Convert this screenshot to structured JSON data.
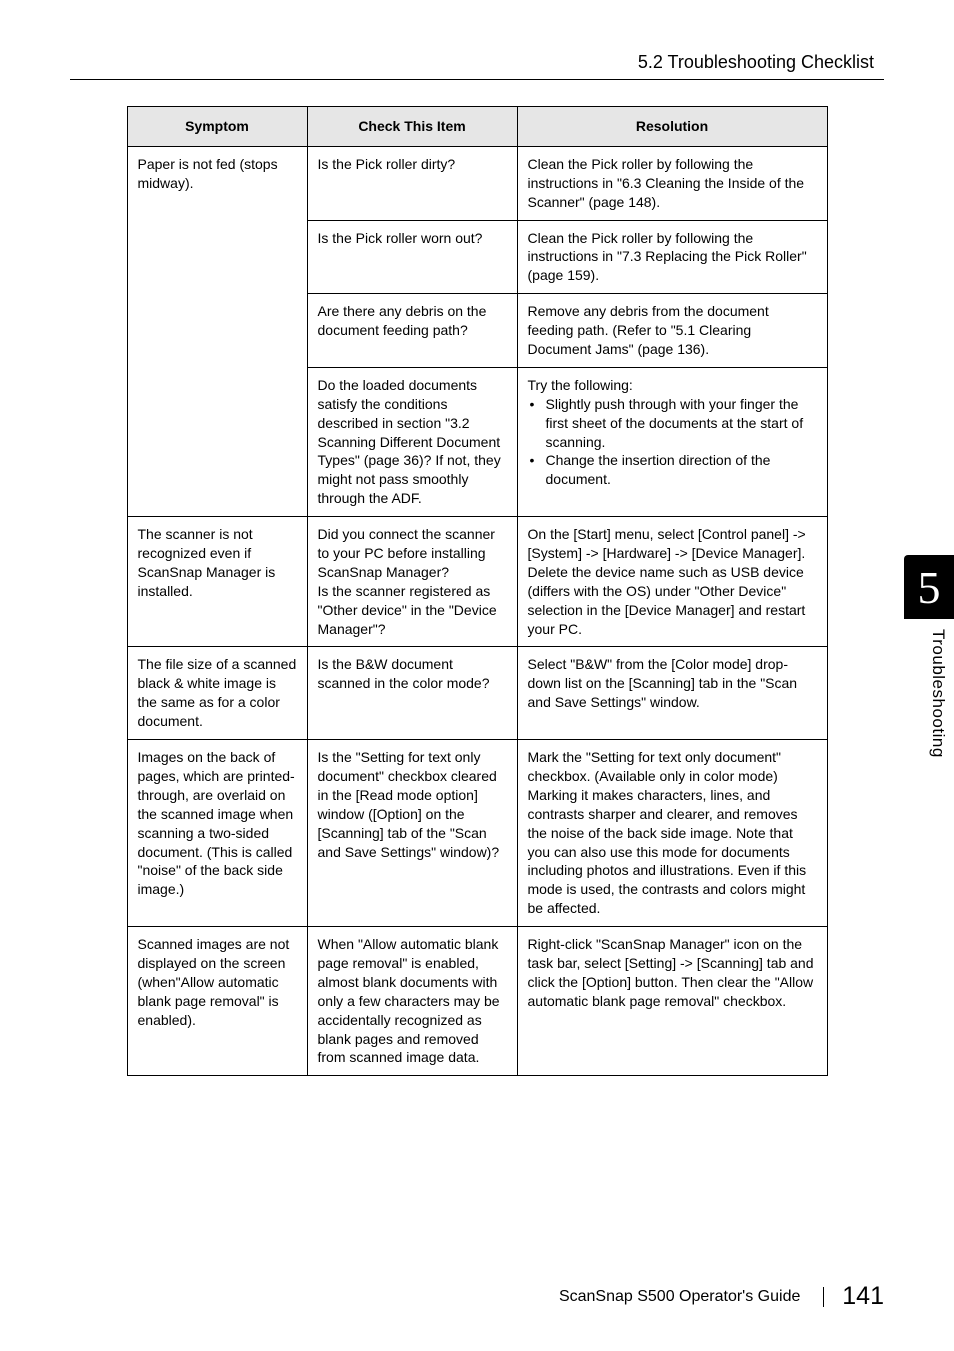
{
  "header": {
    "section": "5.2 Troubleshooting Checklist"
  },
  "side": {
    "chapter_num": "5",
    "chapter_label": "Troubleshooting"
  },
  "table": {
    "headers": {
      "symptom": "Symptom",
      "check": "Check This Item",
      "resolution": "Resolution"
    },
    "rows": {
      "r1": {
        "symptom": "Paper is not fed (stops midway).",
        "c1": {
          "check": "Is the Pick roller dirty?",
          "res": "Clean the Pick roller by following the instructions in \"6.3 Cleaning the Inside of the Scanner\" (page 148)."
        },
        "c2": {
          "check": "Is the Pick roller worn out?",
          "res": "Clean the Pick roller by following the instructions in \"7.3 Replacing the Pick Roller\" (page 159)."
        },
        "c3": {
          "check": "Are there any debris on the document feeding path?",
          "res": "Remove any debris from the docu­ment feeding path. (Refer to \"5.1 Clearing Document Jams\" (page 136)."
        },
        "c4": {
          "check": "Do the loaded documents satisfy the conditions described in section \"3.2 Scanning Different Docu­ment Types\" (page 36)? If not, they might not pass smoothly through the ADF.",
          "res_lead": "Try the following:",
          "res_b1": "Slightly push through with your finger the first sheet of the docu­ments at the start of scanning.",
          "res_b2": "Change the insertion direction of the document."
        }
      },
      "r2": {
        "symptom": "The scanner is not recognized even if ScanSnap Manager is installed.",
        "check": "Did you connect the scan­ner to your PC before installing ScanSnap Man­ager?\nIs the scanner registered as \"Other device\" in the \"Device Manager\"?",
        "res": "On the [Start] menu, select [Control panel] -> [System] -> [Hardware] -> [Device Manager].\nDelete the device name such as USB device (differs with the OS) under \"Other Device\" selection in the [Device Manager] and restart your PC."
      },
      "r3": {
        "symptom": "The file size of a scanned black & white image is the same as for a color document.",
        "check": "Is the B&W document scanned in the color mode?",
        "res": "Select \"B&W\" from the [Color mode] drop-down list on the [Scanning] tab in the \"Scan and Save Settings\" win­dow."
      },
      "r4": {
        "symptom": "Images on the back of pages, which are printed-through, are overlaid on the scanned image when scanning a two-sided document. (This is called \"noise\" of the back side image.)",
        "check": "Is the \"Setting for text only document\" checkbox cleared in the [Read mode option] window ([Option] on the [Scanning] tab of the \"Scan and Save Set­tings\" window)?",
        "res": "Mark the \"Setting for text only docu­ment\" checkbox. (Available only in color mode) Marking it makes char­acters, lines, and contrasts sharper and clearer, and removes the noise of the back side image. Note that you can also use this mode for docu­ments including photos and illustra­tions. Even if this mode is used, the contrasts and colors might be affected."
      },
      "r5": {
        "symptom": "Scanned images are not displayed on the screen (when\"Allow automatic blank page removal\" is enabled).",
        "check": "When \"Allow automatic blank page removal\" is enabled, almost blank documents with only a few characters may be accidentally recognized as blank pages and removed from scanned image data.",
        "res": "Right-click \"ScanSnap Manager\" icon on the task bar, select [Setting] -> [Scanning] tab and click the [Option] button. Then clear the \"Allow automatic blank page removal\" checkbox."
      }
    }
  },
  "footer": {
    "guide": "ScanSnap S500  Operator's Guide",
    "page": "141"
  }
}
